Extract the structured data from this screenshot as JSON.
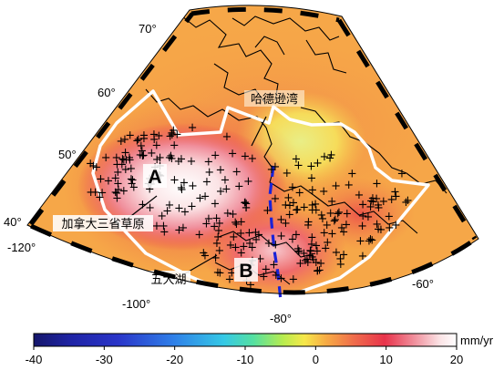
{
  "map": {
    "lat_labels": [
      "70°",
      "60°",
      "50°",
      "40°"
    ],
    "lon_labels": [
      "-120°",
      "-100°",
      "-80°",
      "-60°"
    ],
    "station_marker": "+",
    "annotations": {
      "hudson_bay": "哈德逊湾",
      "prairies": "加拿大三省草原",
      "great_lakes": "五大湖"
    },
    "regions": [
      "A",
      "B"
    ]
  },
  "colorbar": {
    "unit": "mm/yr",
    "min": -40,
    "max": 20,
    "ticks": [
      "-40",
      "-30",
      "-20",
      "-10",
      "0",
      "10",
      "20"
    ],
    "colors": [
      "#15166b",
      "#2a35c9",
      "#2f7fe8",
      "#35c9e6",
      "#55e0a0",
      "#b8ec4e",
      "#f6e84a",
      "#f7ad45",
      "#ef6a4b",
      "#e8334b",
      "#f08f9c",
      "#fbe3e5",
      "#ffffff"
    ]
  },
  "colors": {
    "background_fill": "#f6a748",
    "outline": "#ffffff",
    "divider": "#1b22d6",
    "frame": "#000000"
  }
}
